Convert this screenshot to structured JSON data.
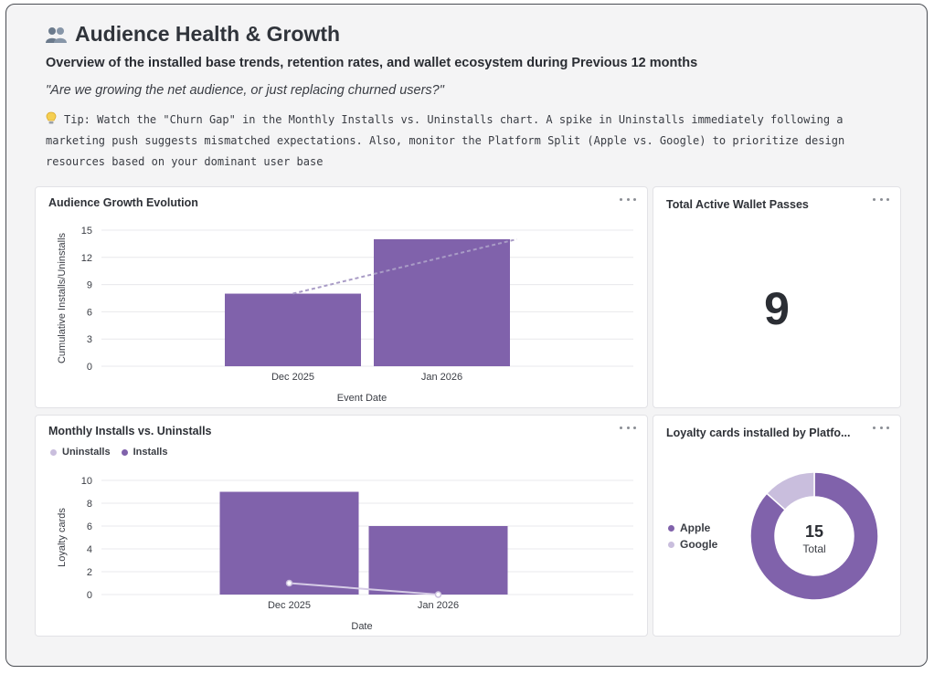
{
  "header": {
    "title": "Audience Health & Growth",
    "title_icon": "people-icon",
    "subtitle": "Overview of the installed base trends, retention rates, and wallet ecosystem during Previous 12 months",
    "question": "\"Are we growing the net audience, or just replacing churned users?\"",
    "tip_icon": "lightbulb-icon",
    "tip": "Tip: Watch the \"Churn Gap\" in the Monthly Installs vs. Uninstalls chart. A spike in Uninstalls immediately following a marketing push suggests mismatched expectations. Also, monitor the Platform Split (Apple vs. Google) to prioritize design resources based on your dominant user base"
  },
  "colors": {
    "bar": "#8062ab",
    "line_light": "#c9bedd",
    "donut_apple": "#8062ab",
    "donut_google": "#c9bedd"
  },
  "cards": {
    "growth": {
      "title": "Audience Growth Evolution",
      "menu_icon": "more-icon"
    },
    "wallet": {
      "title": "Total Active Wallet Passes",
      "value": "9",
      "menu_icon": "more-icon"
    },
    "monthly": {
      "title": "Monthly Installs vs. Uninstalls",
      "menu_icon": "more-icon"
    },
    "platform": {
      "title": "Loyalty cards installed by Platfo...",
      "menu_icon": "more-icon"
    }
  },
  "chart_data": [
    {
      "id": "growth",
      "type": "bar",
      "categories": [
        "Dec 2025",
        "Jan 2026"
      ],
      "series": [
        {
          "values": [
            8,
            14
          ]
        }
      ],
      "trend_line": {
        "values": [
          8,
          14
        ],
        "style": "dashed"
      },
      "xlabel": "Event Date",
      "ylabel": "Cumulative Installs/Uninstalls",
      "ylim": [
        0,
        15
      ],
      "yticks": [
        "15",
        "12",
        "9",
        "6",
        "3",
        "0"
      ],
      "grid": true
    },
    {
      "id": "monthly",
      "type": "bar",
      "categories": [
        "Dec 2025",
        "Jan 2026"
      ],
      "series": [
        {
          "name": "Uninstalls",
          "type": "line",
          "values": [
            1,
            0
          ]
        },
        {
          "name": "Installs",
          "type": "bar",
          "values": [
            9,
            6
          ]
        }
      ],
      "xlabel": "Date",
      "ylabel": "Loyalty cards",
      "ylim": [
        0,
        10
      ],
      "yticks": [
        "10",
        "8",
        "6",
        "4",
        "2",
        "0"
      ],
      "legend": "top-left",
      "grid": true
    },
    {
      "id": "platform",
      "type": "pie",
      "donut": true,
      "labels": [
        "Apple",
        "Google"
      ],
      "values": [
        13,
        2
      ],
      "center_value": "15",
      "center_label": "Total",
      "legend": "left"
    }
  ]
}
